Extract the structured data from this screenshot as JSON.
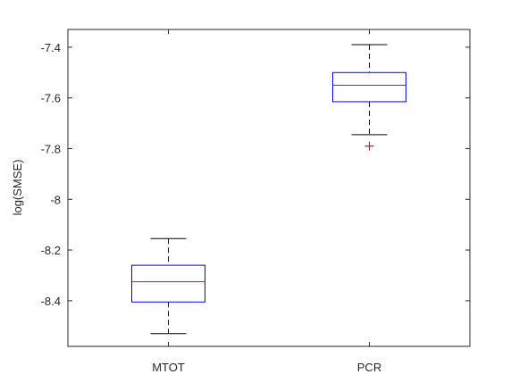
{
  "chart_data": {
    "type": "box",
    "ylabel": "log(SMSE)",
    "xlabel": "",
    "title": "",
    "ylim": [
      -8.58,
      -7.33
    ],
    "yticks": [
      -7.4,
      -7.6,
      -7.8,
      -8,
      -8.2,
      -8.4
    ],
    "ytick_labels": [
      "-7.4",
      "-7.6",
      "-7.8",
      "-8",
      "-8.2",
      "-8.4"
    ],
    "categories": [
      "MTOT",
      "PCR"
    ],
    "boxes": [
      {
        "category": "MTOT",
        "whisker_high": -8.155,
        "q3": -8.26,
        "median": -8.325,
        "q1": -8.405,
        "whisker_low": -8.53,
        "outliers": []
      },
      {
        "category": "PCR",
        "whisker_high": -7.39,
        "q3": -7.5,
        "median": -7.55,
        "q1": -7.615,
        "whisker_low": -7.745,
        "outliers": [
          -7.79
        ]
      }
    ],
    "grid": false,
    "colors": {
      "box": "#0000ff",
      "median": "#ff0000",
      "whisker": "#000000",
      "outlier": "#ff0000",
      "axes": "#262626"
    }
  }
}
